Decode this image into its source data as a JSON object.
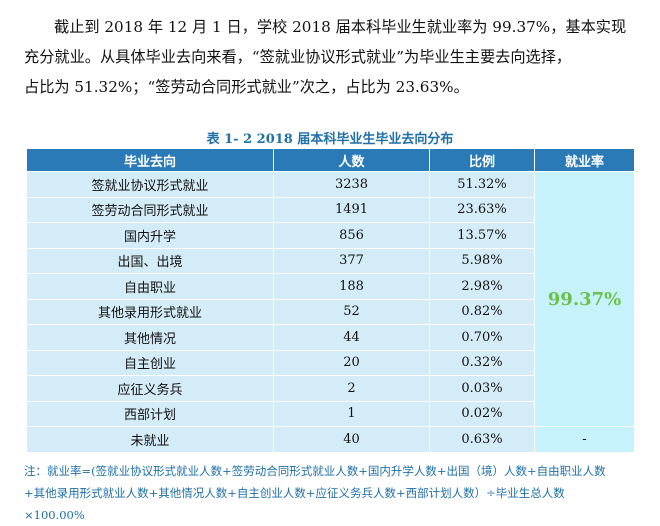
{
  "paragraph": {
    "line1": "截止到 2018 年 12 月 1 日，学校 2018 届本科毕业生就业率为 99.37%，基本实现",
    "line2": "充分就业。从具体毕业去向来看，“签就业协议形式就业”为毕业生主要去向选择，",
    "line3": "占比为 51.32%；“签劳动合同形式就业”次之，占比为 23.63%。"
  },
  "table": {
    "caption": "表 1- 2   2018 届本科毕业生毕业去向分布",
    "headers": [
      "毕业去向",
      "人数",
      "比例",
      "就业率"
    ],
    "rows": [
      {
        "destination": "签就业协议形式就业",
        "count": "3238",
        "ratio": "51.32%"
      },
      {
        "destination": "签劳动合同形式就业",
        "count": "1491",
        "ratio": "23.63%"
      },
      {
        "destination": "国内升学",
        "count": "856",
        "ratio": "13.57%"
      },
      {
        "destination": "出国、出境",
        "count": "377",
        "ratio": "5.98%"
      },
      {
        "destination": "自由职业",
        "count": "188",
        "ratio": "2.98%"
      },
      {
        "destination": "其他录用形式就业",
        "count": "52",
        "ratio": "0.82%"
      },
      {
        "destination": "其他情况",
        "count": "44",
        "ratio": "0.70%"
      },
      {
        "destination": "自主创业",
        "count": "20",
        "ratio": "0.32%"
      },
      {
        "destination": "应征义务兵",
        "count": "2",
        "ratio": "0.03%"
      },
      {
        "destination": "西部计划",
        "count": "1",
        "ratio": "0.02%"
      },
      {
        "destination": "未就业",
        "count": "40",
        "ratio": "0.63%"
      }
    ],
    "employment_rate": "99.37%",
    "unemployed_rate_cell": "-"
  },
  "note": {
    "line1": "注：就业率=(签就业协议形式就业人数+签劳动合同形式就业人数+国内升学人数+出国（境）人数+自由职业人数",
    "line2": "+其他录用形式就业人数+其他情况人数+自主创业人数+应征义务兵人数+西部计划人数）÷毕业生总人数",
    "line3": "×100.00%"
  }
}
